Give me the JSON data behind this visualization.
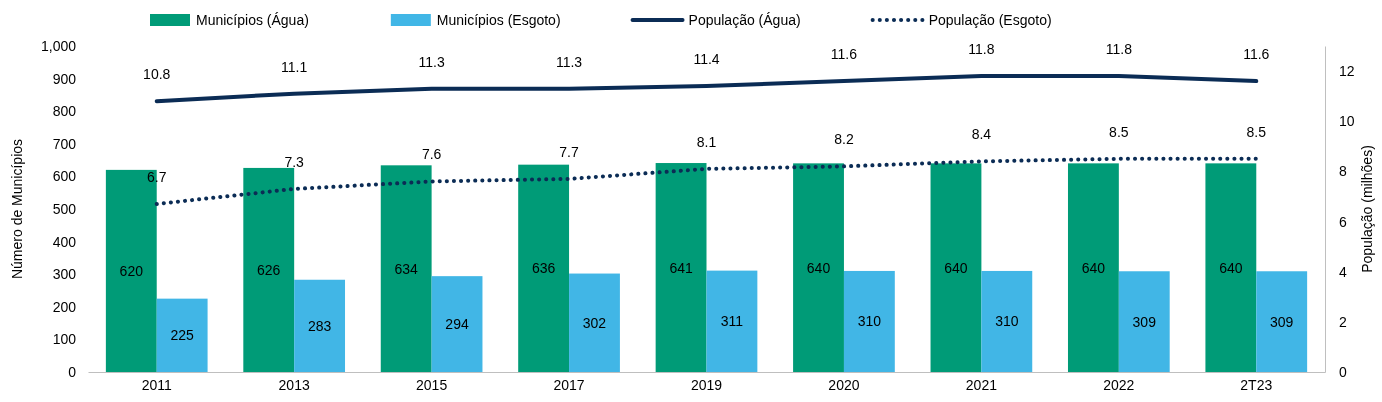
{
  "chart_data": {
    "type": "bar",
    "categories": [
      "2011",
      "2013",
      "2015",
      "2017",
      "2019",
      "2020",
      "2021",
      "2022",
      "2T23"
    ],
    "ylabel": "Número de Municípios",
    "y2label": "População (milhões)",
    "ylim": [
      0,
      1000
    ],
    "yticks": [
      {
        "value": 0,
        "label": "0"
      },
      {
        "value": 100,
        "label": "100"
      },
      {
        "value": 200,
        "label": "200"
      },
      {
        "value": 300,
        "label": "300"
      },
      {
        "value": 400,
        "label": "400"
      },
      {
        "value": 500,
        "label": "500"
      },
      {
        "value": 600,
        "label": "600"
      },
      {
        "value": 700,
        "label": "700"
      },
      {
        "value": 800,
        "label": "800"
      },
      {
        "value": 900,
        "label": "900"
      },
      {
        "value": 1000,
        "label": "1,000"
      }
    ],
    "y2lim": [
      0,
      13
    ],
    "y2ticks": [
      0,
      2,
      4,
      6,
      8,
      10,
      12
    ],
    "legend": "top",
    "grid": false,
    "marker": "none",
    "data_labels": true,
    "series": [
      {
        "name": "Municípios (Água)",
        "color": "#009b77",
        "values": [
          620,
          626,
          634,
          636,
          641,
          640,
          640,
          640,
          640
        ]
      },
      {
        "name": "Municípios (Esgoto)",
        "color": "#41b6e6",
        "values": [
          225,
          283,
          294,
          302,
          311,
          310,
          310,
          309,
          309
        ]
      },
      {
        "name": "População (Água)",
        "type": "line",
        "axis": "y2",
        "line_style": "solid",
        "color": "#0b2c55",
        "values": [
          10.8,
          11.1,
          11.3,
          11.3,
          11.4,
          11.6,
          11.8,
          11.8,
          11.6
        ]
      },
      {
        "name": "População (Esgoto)",
        "type": "line",
        "axis": "y2",
        "line_style": "dotted",
        "color": "#0b2c55",
        "values": [
          6.7,
          7.3,
          7.6,
          7.7,
          8.1,
          8.2,
          8.4,
          8.5,
          8.5
        ]
      }
    ]
  }
}
